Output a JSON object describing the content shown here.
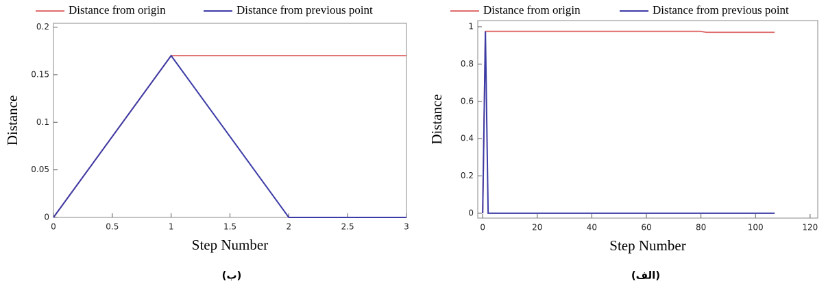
{
  "chart_data": [
    {
      "type": "line",
      "caption": "(ب)",
      "xlabel": "Step Number",
      "ylabel": "Distance",
      "x": [
        0,
        1,
        2,
        3
      ],
      "series": [
        {
          "name": "Distance from origin",
          "color": "#e06c6c",
          "values": [
            0,
            0.17,
            0.17,
            0.17
          ]
        },
        {
          "name": "Distance from previous point",
          "color": "#3b3ba6",
          "values": [
            0,
            0.17,
            0,
            0
          ]
        }
      ],
      "xlim": [
        0,
        3
      ],
      "xticks": [
        0,
        0.5,
        1,
        1.5,
        2,
        2.5,
        3
      ],
      "ylim": [
        0,
        0.204
      ],
      "yticks": [
        0,
        0.05,
        0.1,
        0.15,
        0.2
      ],
      "legend": "top"
    },
    {
      "type": "line",
      "caption": "(الف)",
      "xlabel": "Step Number",
      "ylabel": "Distance",
      "x": [
        0,
        1,
        2,
        80,
        82,
        107
      ],
      "series": [
        {
          "name": "Distance from origin",
          "color": "#e06c6c",
          "values": [
            0,
            0.975,
            0.975,
            0.975,
            0.97,
            0.97
          ]
        },
        {
          "name": "Distance from previous point",
          "color": "#3b3ba6",
          "values": [
            0,
            0.975,
            0,
            0,
            0,
            0
          ]
        }
      ],
      "xlim": [
        -1.8,
        122.8
      ],
      "xticks": [
        0,
        20,
        40,
        60,
        80,
        100,
        120
      ],
      "ylim": [
        -0.026,
        1.033
      ],
      "yticks": [
        0,
        0.2,
        0.4,
        0.6,
        0.8,
        1
      ],
      "legend": "top"
    }
  ]
}
